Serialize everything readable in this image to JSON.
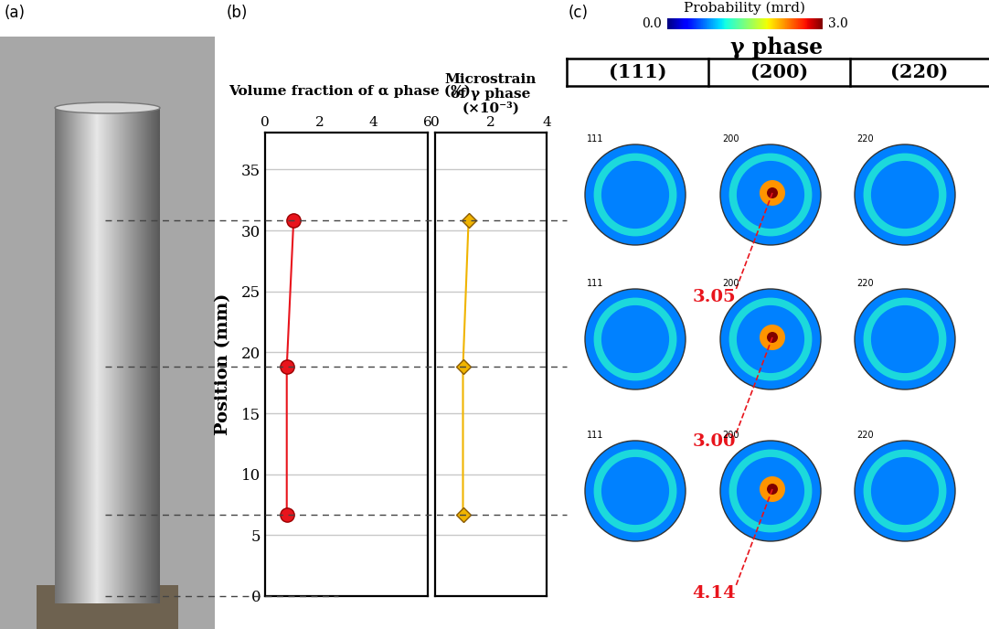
{
  "panel_labels": [
    "(a)",
    "(b)",
    "(c)"
  ],
  "chart_data": [
    {
      "type": "line",
      "title": "Volume fraction of α phase (%)",
      "y_label": "Position (mm)",
      "values": [
        1.05,
        0.8,
        0.8
      ],
      "positions": [
        30.8,
        18.8,
        6.7
      ],
      "color": "#e8141c",
      "marker": "circle",
      "xlim": [
        0,
        6
      ],
      "xticks": [
        0,
        2,
        4,
        6
      ],
      "ylim": [
        0,
        38
      ],
      "yticks": [
        0,
        5,
        10,
        15,
        20,
        25,
        30,
        35
      ],
      "grid": true
    },
    {
      "type": "line",
      "title": "Microstrain\nof γ phase\n(×10⁻³)",
      "values": [
        1.2,
        1.0,
        1.0
      ],
      "positions": [
        30.8,
        18.8,
        6.7
      ],
      "color": "#f0b400",
      "marker": "diamond",
      "xlim": [
        0,
        4
      ],
      "xticks": [
        0,
        2,
        4
      ],
      "ylim": [
        0,
        38
      ],
      "yticks": [
        0,
        5,
        10,
        15,
        20,
        25,
        30,
        35
      ],
      "grid": true,
      "tick_labels": "x"
    }
  ],
  "pole_figures": {
    "colorbar": {
      "title": "Probability (mrd)",
      "range": [
        0.0,
        3.0
      ],
      "ticks": [
        {
          "value": 0.0,
          "label": "0.0"
        },
        {
          "value": 3.0,
          "label": "3.0"
        }
      ]
    },
    "phase": "γ phase",
    "planes": [
      "(111)",
      "(200)",
      "(220)"
    ],
    "inset_labels": [
      "111",
      "200",
      "220"
    ],
    "peak_plane": "(200)",
    "peak_values": [
      {
        "value": 3.05,
        "label": "3.05"
      },
      {
        "value": 3.0,
        "label": "3.00"
      },
      {
        "value": 4.14,
        "label": "4.14"
      }
    ]
  }
}
